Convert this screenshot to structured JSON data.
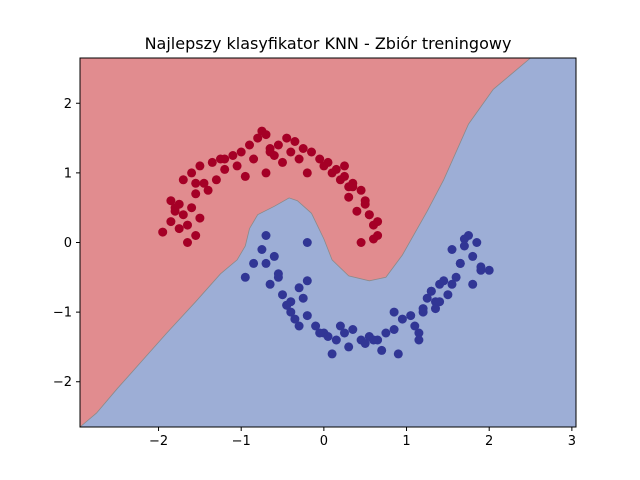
{
  "chart_data": {
    "type": "scatter",
    "title": "Najlepszy klasyfikator KNN - Zbiór treningowy",
    "xlabel": "",
    "ylabel": "",
    "xlim": [
      -2.95,
      3.05
    ],
    "ylim": [
      -2.65,
      2.65
    ],
    "xticks": [
      -2,
      -1,
      0,
      1,
      2,
      3
    ],
    "yticks": [
      -2,
      -1,
      0,
      1,
      2
    ],
    "xtick_labels": [
      "−2",
      "−1",
      "0",
      "1",
      "2",
      "3"
    ],
    "ytick_labels": [
      "−2",
      "−1",
      "0",
      "1",
      "2"
    ],
    "grid": false,
    "colors": {
      "class_0_point": "#a50026",
      "class_1_point": "#313695",
      "class_0_region": "#e18c8f",
      "class_1_region": "#9daed6"
    },
    "decision_boundary": [
      [
        -2.95,
        -2.65
      ],
      [
        -2.75,
        -2.45
      ],
      [
        -2.5,
        -2.1
      ],
      [
        -2.2,
        -1.7
      ],
      [
        -1.9,
        -1.3
      ],
      [
        -1.55,
        -0.85
      ],
      [
        -1.25,
        -0.45
      ],
      [
        -1.05,
        -0.25
      ],
      [
        -0.95,
        -0.05
      ],
      [
        -0.9,
        0.2
      ],
      [
        -0.8,
        0.4
      ],
      [
        -0.6,
        0.52
      ],
      [
        -0.42,
        0.64
      ],
      [
        -0.32,
        0.6
      ],
      [
        -0.15,
        0.42
      ],
      [
        0.0,
        0.05
      ],
      [
        0.1,
        -0.25
      ],
      [
        0.3,
        -0.48
      ],
      [
        0.55,
        -0.55
      ],
      [
        0.75,
        -0.5
      ],
      [
        0.95,
        -0.18
      ],
      [
        1.25,
        0.45
      ],
      [
        1.45,
        0.9
      ],
      [
        1.75,
        1.7
      ],
      [
        2.05,
        2.2
      ],
      [
        2.5,
        2.65
      ]
    ],
    "series": [
      {
        "name": "",
        "x": [
          -1.95,
          -1.85,
          -1.8,
          -1.75,
          -1.7,
          -1.65,
          -1.6,
          -1.55,
          -1.7,
          -1.6,
          -1.5,
          -1.45,
          -1.35,
          -1.25,
          -1.2,
          -1.1,
          -1.0,
          -0.9,
          -0.8,
          -0.75,
          -0.7,
          -0.65,
          -0.6,
          -0.55,
          -0.45,
          -0.35,
          -0.25,
          -0.15,
          -0.05,
          0.05,
          0.15,
          0.25,
          0.35,
          0.45,
          0.5,
          0.55,
          0.6,
          0.65,
          0.3,
          0.4,
          -1.85,
          -1.75,
          -1.5,
          -1.3,
          -1.05,
          -0.85,
          -0.65,
          -0.4,
          -0.2,
          0.1,
          0.3,
          0.5,
          0.65,
          -1.55,
          -1.65,
          -1.4,
          -0.95,
          -0.5,
          0.0,
          0.2,
          0.45,
          0.6,
          -1.8,
          -1.55,
          -1.2,
          -0.7,
          -0.3,
          0.25,
          0.35,
          0.55
        ],
        "y": [
          0.15,
          0.3,
          0.45,
          0.55,
          0.4,
          0.25,
          0.5,
          0.7,
          0.9,
          1.0,
          1.1,
          0.85,
          1.15,
          1.2,
          1.05,
          1.25,
          1.3,
          1.4,
          1.5,
          1.6,
          1.55,
          1.35,
          1.25,
          1.4,
          1.5,
          1.45,
          1.35,
          1.3,
          1.2,
          1.15,
          1.05,
          0.95,
          0.85,
          0.75,
          0.6,
          0.4,
          0.25,
          0.1,
          0.65,
          0.45,
          0.6,
          0.2,
          0.35,
          0.9,
          1.1,
          1.2,
          1.3,
          1.3,
          1.0,
          1.0,
          0.8,
          0.55,
          0.3,
          0.1,
          0.0,
          0.75,
          0.95,
          1.15,
          1.1,
          0.9,
          0.0,
          0.05,
          0.5,
          0.85,
          1.2,
          1.0,
          1.2,
          1.1,
          0.8,
          0.4
        ]
      },
      {
        "name": "",
        "x": [
          -0.95,
          -0.85,
          -0.75,
          -0.7,
          -0.6,
          -0.55,
          -0.5,
          -0.45,
          -0.4,
          -0.35,
          -0.3,
          -0.25,
          -0.2,
          -0.1,
          0.0,
          0.05,
          0.15,
          0.25,
          0.35,
          0.45,
          0.55,
          0.65,
          0.75,
          0.85,
          0.95,
          1.05,
          1.15,
          1.2,
          1.25,
          1.3,
          1.35,
          1.4,
          1.5,
          1.6,
          1.65,
          1.7,
          1.75,
          1.8,
          1.9,
          2.0,
          -0.7,
          -0.55,
          -0.4,
          -0.3,
          -0.2,
          -0.05,
          0.1,
          0.3,
          0.5,
          0.7,
          0.9,
          1.1,
          1.2,
          1.35,
          1.45,
          1.55,
          1.65,
          1.8,
          1.85,
          -0.65,
          -0.45,
          -0.2,
          0.2,
          0.6,
          0.85,
          1.15,
          1.3,
          1.4,
          1.55,
          1.7,
          1.9
        ],
        "y": [
          -0.5,
          -0.3,
          -0.1,
          0.1,
          -0.2,
          -0.5,
          -0.75,
          -0.9,
          -1.0,
          -1.1,
          -1.2,
          -0.8,
          -1.05,
          -1.2,
          -1.3,
          -1.35,
          -1.4,
          -1.3,
          -1.25,
          -1.4,
          -1.35,
          -1.4,
          -1.3,
          -1.25,
          -1.1,
          -1.05,
          -1.3,
          -0.95,
          -0.8,
          -0.7,
          -0.85,
          -0.6,
          -0.75,
          -0.5,
          -0.3,
          -0.05,
          0.1,
          -0.2,
          -0.4,
          -0.4,
          -0.3,
          -0.45,
          -0.85,
          -0.65,
          -0.55,
          -1.3,
          -1.6,
          -1.5,
          -1.45,
          -1.55,
          -1.6,
          -1.2,
          -1.0,
          -0.95,
          -0.55,
          -0.6,
          -0.3,
          -0.6,
          0.0,
          -0.6,
          -0.9,
          0.0,
          -1.2,
          -1.4,
          -1.0,
          -1.4,
          -0.7,
          -0.85,
          -0.1,
          0.05,
          -0.35
        ]
      }
    ]
  }
}
